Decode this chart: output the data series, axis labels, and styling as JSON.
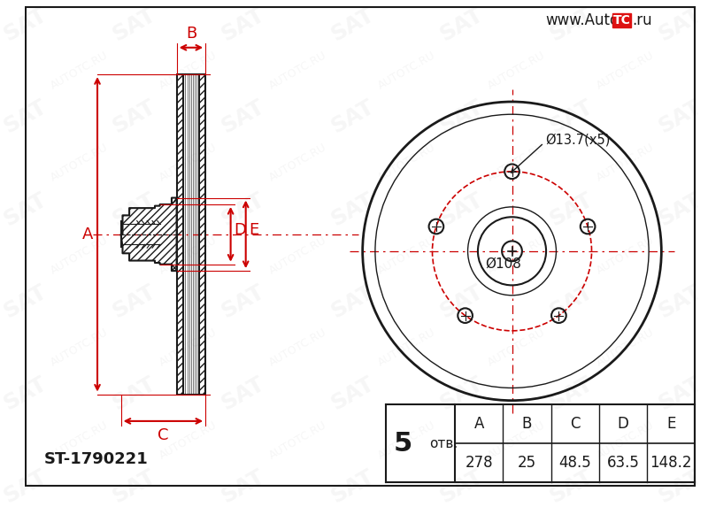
{
  "bg_color": "#ffffff",
  "line_color": "#1a1a1a",
  "red_color": "#cc0000",
  "watermark_color": "#d0d0d0",
  "part_number": "ST-1790221",
  "holes": "5",
  "otv_label": "отв.",
  "hole_label": "Ø13.7(x5)",
  "center_label": "Ø108",
  "table_headers": [
    "A",
    "B",
    "C",
    "D",
    "E"
  ],
  "table_values": [
    "278",
    "25",
    "48.5",
    "63.5",
    "148.2"
  ],
  "url_text": "www.Auto",
  "url_suffix": ".ru"
}
